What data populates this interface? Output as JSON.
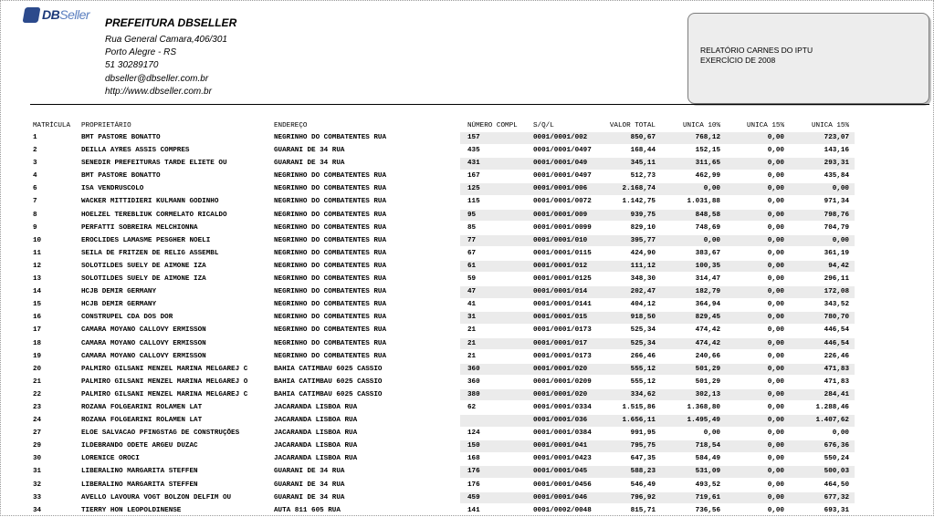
{
  "logo": {
    "brand_bold": "DB",
    "brand_soft": "Seller"
  },
  "header": {
    "title": "PREFEITURA DBSELLER",
    "address": "Rua General Camara,406/301",
    "city": "Porto Alegre - RS",
    "phone": "51 30289170",
    "email": "dbseller@dbseller.com.br",
    "website": "http://www.dbseller.com.br"
  },
  "report": {
    "line1": "RELATÓRIO CARNES DO IPTU",
    "line2": "EXERCÍCIO DE 2008"
  },
  "table": {
    "columns": {
      "matricula": "MATRÍCULA",
      "proprietario": "PROPRIETÁRIO",
      "endereco": "ENDEREÇO",
      "numero_compl": "NÚMERO COMPL",
      "sql": "S/Q/L",
      "valor_total": "VALOR TOTAL",
      "unica10": "UNICA 10%",
      "unica15a": "UNICA 15%",
      "unica15b": "UNICA 15%"
    },
    "rows": [
      [
        "1",
        "BMT PASTORE BONATTO",
        "NEGRINHO DO COMBATENTES RUA",
        "157",
        "0001/0001/002",
        "850,67",
        "768,12",
        "0,00",
        "723,07"
      ],
      [
        "2",
        "DEILLA AYRES ASSIS COMPRES",
        "GUARANI DE 34 RUA",
        "435",
        "0001/0001/0497",
        "168,44",
        "152,15",
        "0,00",
        "143,16"
      ],
      [
        "3",
        "SENEDIR PREFEITURAS TARDE ELIETE OU",
        "GUARANI DE 34 RUA",
        "431",
        "0001/0001/049",
        "345,11",
        "311,65",
        "0,00",
        "293,31"
      ],
      [
        "4",
        "BMT PASTORE BONATTO",
        "NEGRINHO DO COMBATENTES RUA",
        "167",
        "0001/0001/0497",
        "512,73",
        "462,99",
        "0,00",
        "435,84"
      ],
      [
        "6",
        "ISA VENDRUSCOLO",
        "NEGRINHO DO COMBATENTES RUA",
        "125",
        "0001/0001/006",
        "2.168,74",
        "0,00",
        "0,00",
        "0,00"
      ],
      [
        "7",
        "WACKER MITTIDIERI KULMANN GODINHO",
        "NEGRINHO DO COMBATENTES RUA",
        "115",
        "0001/0001/0072",
        "1.142,75",
        "1.031,88",
        "0,00",
        "971,34"
      ],
      [
        "8",
        "HOELZEL TEREBLIUK CORMELATO RICALDO",
        "NEGRINHO DO COMBATENTES RUA",
        "95",
        "0001/0001/009",
        "939,75",
        "848,58",
        "0,00",
        "798,76"
      ],
      [
        "9",
        "PERFATTI SOBREIRA MELCHIONNA",
        "NEGRINHO DO COMBATENTES RUA",
        "85",
        "0001/0001/0099",
        "829,10",
        "748,69",
        "0,00",
        "704,79"
      ],
      [
        "10",
        "EROCLIDES LAMASME PESGHER NOELI",
        "NEGRINHO DO COMBATENTES RUA",
        "77",
        "0001/0001/010",
        "395,77",
        "0,00",
        "0,00",
        "0,00"
      ],
      [
        "11",
        "SEILA DE FRITZEN DE RELIG ASSEMBL",
        "NEGRINHO DO COMBATENTES RUA",
        "67",
        "0001/0001/0115",
        "424,90",
        "383,67",
        "0,00",
        "361,19"
      ],
      [
        "12",
        "SOLOTILDES SUELY DE AIMONE IZA",
        "NEGRINHO DO COMBATENTES RUA",
        "61",
        "0001/0001/012",
        "111,12",
        "100,35",
        "0,00",
        "94,42"
      ],
      [
        "13",
        "SOLOTILDES SUELY DE AIMONE IZA",
        "NEGRINHO DO COMBATENTES RUA",
        "59",
        "0001/0001/0125",
        "348,30",
        "314,47",
        "0,00",
        "296,11"
      ],
      [
        "14",
        "HCJB DEMIR GERMANY",
        "NEGRINHO DO COMBATENTES RUA",
        "47",
        "0001/0001/014",
        "202,47",
        "182,79",
        "0,00",
        "172,08"
      ],
      [
        "15",
        "HCJB DEMIR GERMANY",
        "NEGRINHO DO COMBATENTES RUA",
        "41",
        "0001/0001/0141",
        "404,12",
        "364,94",
        "0,00",
        "343,52"
      ],
      [
        "16",
        "CONSTRUPEL CDA DOS DOR",
        "NEGRINHO DO COMBATENTES RUA",
        "31",
        "0001/0001/015",
        "918,50",
        "829,45",
        "0,00",
        "780,70"
      ],
      [
        "17",
        "CAMARA MOYANO CALLOVY ERMISSON",
        "NEGRINHO DO COMBATENTES RUA",
        "21",
        "0001/0001/0173",
        "525,34",
        "474,42",
        "0,00",
        "446,54"
      ],
      [
        "18",
        "CAMARA MOYANO CALLOVY ERMISSON",
        "NEGRINHO DO COMBATENTES RUA",
        "21",
        "0001/0001/017",
        "525,34",
        "474,42",
        "0,00",
        "446,54"
      ],
      [
        "19",
        "CAMARA MOYANO CALLOVY ERMISSON",
        "NEGRINHO DO COMBATENTES RUA",
        "21",
        "0001/0001/0173",
        "266,46",
        "240,66",
        "0,00",
        "226,46"
      ],
      [
        "20",
        "PALMIRO GILSANI MENZEL MARINA MELGAREJ C",
        "BAHIA CATIMBAU 6025 CASSIO",
        "360",
        "0001/0001/020",
        "555,12",
        "501,29",
        "0,00",
        "471,83"
      ],
      [
        "21",
        "PALMIRO GILSANI MENZEL MARINA MELGAREJ O",
        "BAHIA CATIMBAU 6025 CASSIO",
        "360",
        "0001/0001/0209",
        "555,12",
        "501,29",
        "0,00",
        "471,83"
      ],
      [
        "22",
        "PALMIRO GILSANI MENZEL MARINA MELGAREJ C",
        "BAHIA CATIMBAU 6025 CASSIO",
        "380",
        "0001/0001/020",
        "334,62",
        "302,13",
        "0,00",
        "284,41"
      ],
      [
        "23",
        "ROZANA FOLGEARINI ROLAMEN LAT",
        "JACARANDA LISBOA RUA",
        "62",
        "0001/0001/0334",
        "1.515,86",
        "1.368,80",
        "0,00",
        "1.288,46"
      ],
      [
        "24",
        "ROZANA FOLGEARINI ROLAMEN LAT",
        "JACARANDA LISBOA RUA",
        "",
        "0001/0001/036",
        "1.656,11",
        "1.495,49",
        "0,00",
        "1.407,62"
      ],
      [
        "27",
        "ELOE SALVACAO PFINGSTAG DE CONSTRUÇÕES",
        "JACARANDA LISBOA RUA",
        "124",
        "0001/0001/0384",
        "991,95",
        "0,00",
        "0,00",
        "0,00"
      ],
      [
        "29",
        "ILDEBRANDO ODETE ARGEU DUZAC",
        "JACARANDA LISBOA RUA",
        "150",
        "0001/0001/041",
        "795,75",
        "718,54",
        "0,00",
        "676,36"
      ],
      [
        "30",
        "LORENICE OROCI",
        "JACARANDA LISBOA RUA",
        "168",
        "0001/0001/0423",
        "647,35",
        "584,49",
        "0,00",
        "550,24"
      ],
      [
        "31",
        "LIBERALINO MARGARITA STEFFEN",
        "GUARANI DE 34 RUA",
        "176",
        "0001/0001/045",
        "588,23",
        "531,09",
        "0,00",
        "500,03"
      ],
      [
        "32",
        "LIBERALINO MARGARITA STEFFEN",
        "GUARANI DE 34 RUA",
        "176",
        "0001/0001/0456",
        "546,49",
        "493,52",
        "0,00",
        "464,50"
      ],
      [
        "33",
        "AVELLO LAVOURA VOGT BOLZON DELFIM OU",
        "GUARANI DE 34 RUA",
        "459",
        "0001/0001/046",
        "796,92",
        "719,61",
        "0,00",
        "677,32"
      ],
      [
        "34",
        "TIERRY HON LEOPOLDINENSE",
        "AUTA 811 605 RUA",
        "141",
        "0001/0002/0048",
        "815,71",
        "736,56",
        "0,00",
        "693,31"
      ]
    ]
  }
}
